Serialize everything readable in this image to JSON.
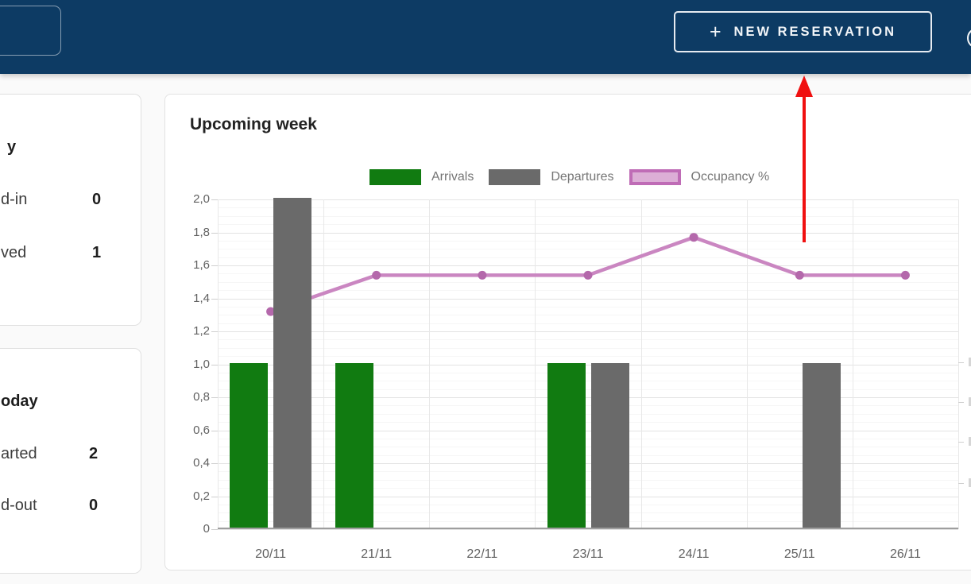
{
  "header": {
    "new_reservation_button": {
      "plus": "+",
      "label": "NEW RESERVATION"
    }
  },
  "sidebar": {
    "card_arrivals": {
      "title_fragment": "y",
      "rows": [
        {
          "label": "d-in",
          "value": "0"
        },
        {
          "label": "ved",
          "value": "1"
        }
      ]
    },
    "card_departures": {
      "title_fragment": "oday",
      "rows": [
        {
          "label": "arted",
          "value": "2"
        },
        {
          "label": "d-out",
          "value": "0"
        }
      ]
    }
  },
  "chart_data": {
    "type": "bar",
    "title": "Upcoming week",
    "categories": [
      "20/11",
      "21/11",
      "22/11",
      "23/11",
      "24/11",
      "25/11",
      "26/11"
    ],
    "series": [
      {
        "name": "Arrivals",
        "type": "bar",
        "color": "#117b11",
        "values": [
          1,
          1,
          0,
          1,
          0,
          0,
          0
        ]
      },
      {
        "name": "Departures",
        "type": "bar",
        "color": "#6a6a6a",
        "values": [
          2,
          0,
          0,
          1,
          0,
          1,
          0
        ]
      },
      {
        "name": "Occupancy %",
        "type": "line",
        "color": "#ca86c1",
        "point_color": "#b468ab",
        "legend_fill": "#dcaed6",
        "legend_border": "#bf6cb6",
        "values": [
          1.32,
          1.54,
          1.54,
          1.54,
          1.77,
          1.54,
          1.54
        ]
      }
    ],
    "ylim": [
      0,
      2
    ],
    "ytick_labels": [
      "2,0",
      "1,8",
      "1,6",
      "1,4",
      "1,2",
      "1,0",
      "0,8",
      "0,6",
      "0,4",
      "0,2",
      "0"
    ],
    "grid": true,
    "legend_position": "top"
  },
  "annotation": {
    "arrow_color": "#f01010"
  }
}
